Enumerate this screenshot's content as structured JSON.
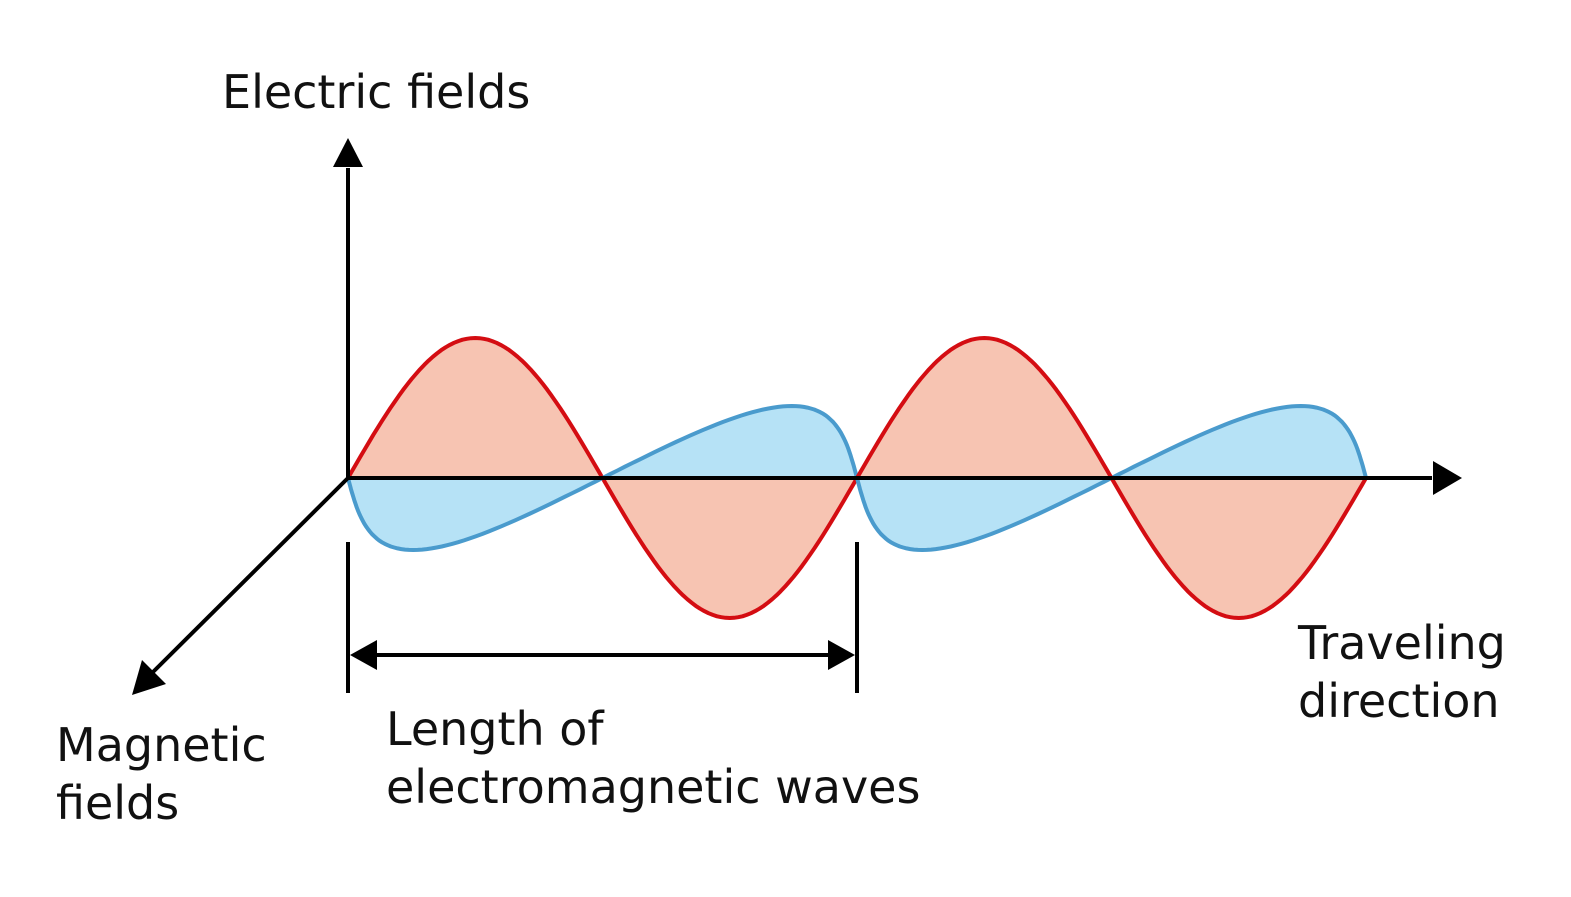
{
  "labels": {
    "electric_fields": "Electric fields",
    "traveling_direction": [
      "Traveling",
      "direction"
    ],
    "magnetic_fields": [
      "Magnetic",
      "fields"
    ],
    "wavelength": [
      "Length of",
      "electromagnetic waves"
    ]
  },
  "colors": {
    "electric_stroke": "#d40d12",
    "electric_fill": "#f7c4b2",
    "magnetic_stroke": "#4a9bcd",
    "magnetic_fill": "#b6e2f6",
    "axis": "#000000"
  },
  "waves": {
    "electric_field": {
      "cycles": 2,
      "orientation": "vertical"
    },
    "magnetic_field": {
      "cycles": 2,
      "orientation": "perpendicular"
    }
  }
}
